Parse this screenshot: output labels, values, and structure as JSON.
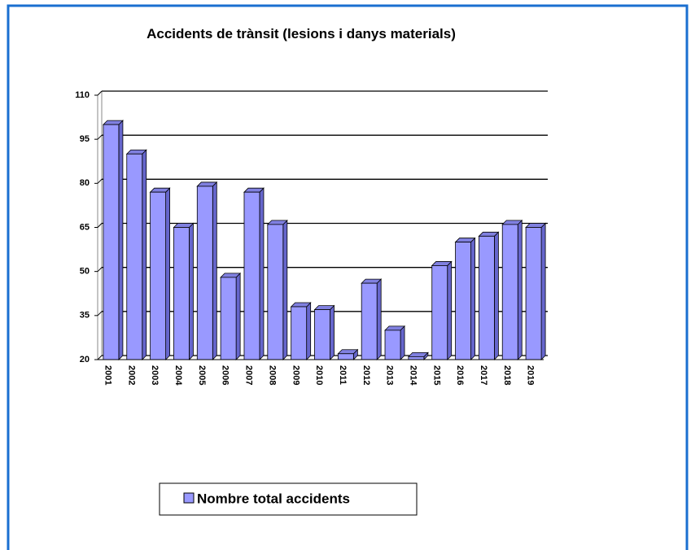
{
  "chart_data": {
    "type": "bar",
    "title": "Accidents de trànsit (lesions i danys materials)",
    "categories": [
      "2001",
      "2002",
      "2003",
      "2004",
      "2005",
      "2006",
      "2007",
      "2008",
      "2009",
      "2010",
      "2011",
      "2012",
      "2013",
      "2014",
      "2015",
      "2016",
      "2017",
      "2018",
      "2019"
    ],
    "series": [
      {
        "name": "Nombre total accidents",
        "color": "#9999ff",
        "values": [
          100,
          90,
          77,
          65,
          79,
          48,
          77,
          66,
          38,
          37,
          22,
          46,
          30,
          21,
          52,
          60,
          62,
          66,
          65
        ]
      }
    ],
    "ylim": [
      20,
      110
    ],
    "yticks": [
      20,
      35,
      50,
      65,
      80,
      95,
      110
    ],
    "grid": true,
    "legend": "bottom"
  }
}
